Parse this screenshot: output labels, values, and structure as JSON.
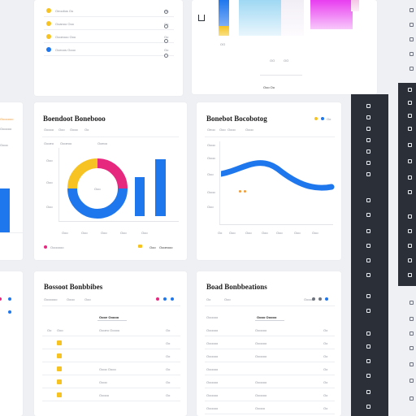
{
  "colors": {
    "blue": "#1f77ee",
    "yellow": "#f6c323",
    "magenta": "#e6287e",
    "orange": "#f29a36",
    "dark_rail": "#2b2f38",
    "background": "#eef0f4"
  },
  "top_left_card": {
    "rows": [
      {
        "label": "Oeoolios  Oo",
        "value": "Oo",
        "color": "#f6c323"
      },
      {
        "label": "Ooanoo Ooo",
        "value": "Oo",
        "color": "#f6c323"
      },
      {
        "label": "Oooeooo Ooo",
        "value": "Oo",
        "color": "#f6c323"
      },
      {
        "label": "Ooeoos Oooo",
        "value": "Oo",
        "color": "#1f77ee"
      }
    ]
  },
  "top_right_card": {
    "footer_label": "Ooo Oo",
    "axis_labels": [
      "OO",
      "OO",
      "OO"
    ]
  },
  "donut_card": {
    "title": "Boendoot Bonebooo",
    "subtitle_items": [
      "Ooooo",
      "Ooo",
      "Oooo",
      "Oo"
    ],
    "filter_items": [
      "Oooeo",
      "Oooeoo",
      "Ooeoo"
    ],
    "y_ticks": [
      "Ooo",
      "Ooo",
      "Ooo"
    ],
    "x_ticks": [
      "Ooo",
      "Ooo",
      "Ooo",
      "Ooo",
      "Ooo"
    ],
    "donut_center_label": "Ooo",
    "legend": [
      {
        "label": "Ooooooo",
        "color": "#e6287e"
      },
      {
        "label": "Ooo",
        "color": "#f6c323"
      },
      {
        "label": "Oooeooo",
        "color": "#f6c323"
      }
    ]
  },
  "line_card": {
    "title": "Bonebot Bocobotog",
    "subtitle_items": [
      "Oeoo",
      "Ooo",
      "Oooo",
      "Oooo"
    ],
    "y_ticks": [
      "Oooo",
      "Oooo",
      "Ooo",
      "Oooo",
      "Ooo"
    ],
    "x_ticks": [
      "Oo",
      "Ooo",
      "Ooo",
      "Ooo",
      "Ooo",
      "Ooo",
      "Ooo"
    ]
  },
  "bottom_left_card": {
    "title": "Bossoot Bonbbibes",
    "tabs": [
      "Ooooooo",
      "Oooo",
      "Ooo"
    ],
    "column_header": "Oooe Ooooo",
    "rows": [
      {
        "id": "Oo",
        "label": "Ooo",
        "value": "Oooeo Ooooo",
        "end": "Oo"
      },
      {
        "id": "",
        "label": "",
        "value": "",
        "end": "Oo"
      },
      {
        "id": "",
        "label": "",
        "value": "",
        "end": "Oo"
      },
      {
        "id": "",
        "label": "",
        "value": "Oooo Oooo",
        "end": "Oo"
      },
      {
        "id": "",
        "label": "",
        "value": "Oooo",
        "end": "Oo"
      },
      {
        "id": "",
        "label": "",
        "value": "Ooooo",
        "end": "Oo"
      }
    ]
  },
  "bottom_right_card": {
    "title": "Boad Bonbbeations",
    "tabs": [
      "Ooooo",
      "Oo",
      "Ooo"
    ],
    "header": {
      "name": "Oooooo",
      "value": "Oooo Ooooo"
    },
    "rows": [
      {
        "name": "Oooooo",
        "value": "Oooooo",
        "end": "Oo"
      },
      {
        "name": "Oooooo",
        "value": "Oooooo",
        "end": "Oo"
      },
      {
        "name": "Oooooo",
        "value": "Oooooo",
        "end": "Oo"
      },
      {
        "name": "Oooooo",
        "value": "",
        "end": "Oo"
      },
      {
        "name": "Oooooo",
        "value": "Oooooo",
        "end": "Oo"
      },
      {
        "name": "Oooooo",
        "value": "Oooooo",
        "end": "Oo"
      },
      {
        "name": "Oooooo",
        "value": "Ooooo",
        "end": "Oo"
      }
    ]
  },
  "left_edge_card": {
    "labels": [
      "Ooooooo",
      "Oooooo",
      "Oooo"
    ]
  }
}
